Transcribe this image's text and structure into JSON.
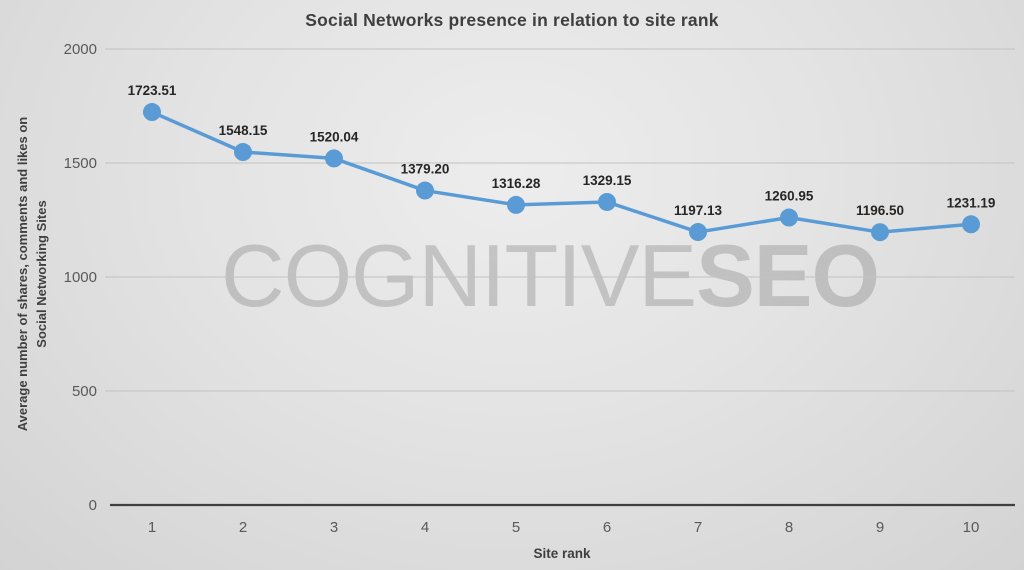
{
  "title": "Social Networks presence in relation to site rank",
  "watermark": {
    "light": "COGNITIVE",
    "bold": "SEO"
  },
  "chart_data": {
    "type": "line",
    "title": "Social Networks presence in relation to site rank",
    "xlabel": "Site rank",
    "ylabel": "Average number of shares, comments and likes on Social Networking Sites",
    "ylabel_lines": [
      "Average number of shares, comments and likes on",
      "Social Networking Sites"
    ],
    "categories": [
      "1",
      "2",
      "3",
      "4",
      "5",
      "6",
      "7",
      "8",
      "9",
      "10"
    ],
    "values": [
      1723.51,
      1548.15,
      1520.04,
      1379.2,
      1316.28,
      1329.15,
      1197.13,
      1260.95,
      1196.5,
      1231.19
    ],
    "data_labels": [
      "1723.51",
      "1548.15",
      "1520.04",
      "1379.20",
      "1316.28",
      "1329.15",
      "1197.13",
      "1260.95",
      "1196.50",
      "1231.19"
    ],
    "ylim": [
      0,
      2000
    ],
    "yticks": [
      0,
      500,
      1000,
      1500,
      2000
    ],
    "grid": true,
    "legend_position": "none",
    "marker": "circle"
  },
  "colors": {
    "series": "#5b9bd5",
    "gridline": "#c2c2c2",
    "axis_line": "#3f3f3f",
    "tick_label": "#595959",
    "data_label": "#262626"
  }
}
